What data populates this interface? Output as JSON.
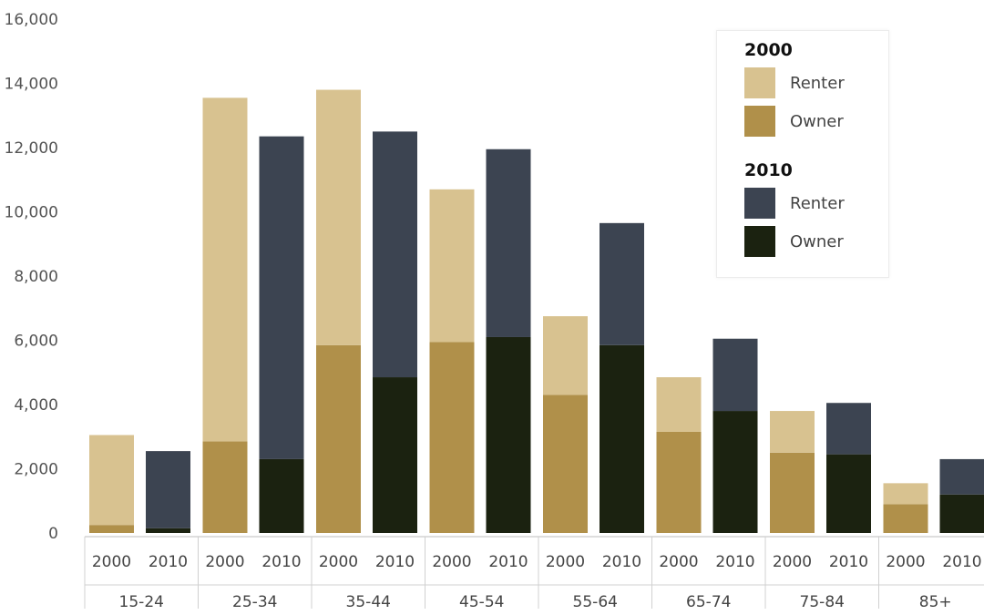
{
  "chart_data": {
    "type": "bar",
    "stacked": true,
    "categories": [
      "15-24",
      "25-34",
      "35-44",
      "45-54",
      "55-64",
      "65-74",
      "75-84",
      "85+"
    ],
    "years": [
      "2000",
      "2010"
    ],
    "ylim": [
      0,
      16000
    ],
    "yticks": [
      "0",
      "2,000",
      "4,000",
      "6,000",
      "8,000",
      "10,000",
      "12,000",
      "14,000",
      "16,000"
    ],
    "ytick_values": [
      0,
      2000,
      4000,
      6000,
      8000,
      10000,
      12000,
      14000,
      16000
    ],
    "grid": false,
    "legend_position": "top-right",
    "series": [
      {
        "group": "2000",
        "tenure": "Owner",
        "color": "#b0904a",
        "values": [
          250,
          2850,
          5850,
          5950,
          4300,
          3150,
          2500,
          900
        ]
      },
      {
        "group": "2000",
        "tenure": "Renter",
        "color": "#d8c290",
        "values": [
          2800,
          10700,
          7950,
          4750,
          2450,
          1700,
          1300,
          650
        ]
      },
      {
        "group": "2010",
        "tenure": "Owner",
        "color": "#1b2210",
        "values": [
          150,
          2300,
          4850,
          6100,
          5850,
          3800,
          2450,
          1200
        ]
      },
      {
        "group": "2010",
        "tenure": "Renter",
        "color": "#3c4451",
        "values": [
          2400,
          10050,
          7650,
          5850,
          3800,
          2250,
          1600,
          1100
        ]
      }
    ]
  },
  "legend": {
    "groups": [
      {
        "title": "2000",
        "items": [
          {
            "label": "Renter",
            "color": "#d8c290"
          },
          {
            "label": "Owner",
            "color": "#b0904a"
          }
        ]
      },
      {
        "title": "2010",
        "items": [
          {
            "label": "Renter",
            "color": "#3c4451"
          },
          {
            "label": "Owner",
            "color": "#1b2210"
          }
        ]
      }
    ]
  }
}
